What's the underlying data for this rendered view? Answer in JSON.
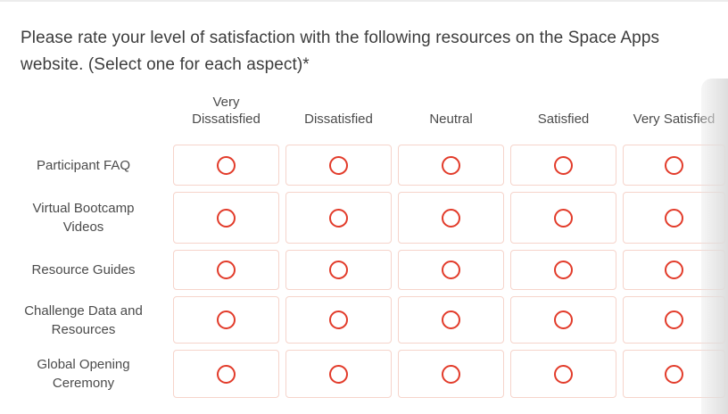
{
  "question": {
    "title": "Please rate your level of satisfaction with the following resources on the Space Apps website. (Select one for each aspect)*"
  },
  "matrix": {
    "columns": [
      "Very Dissatisfied",
      "Dissatisfied",
      "Neutral",
      "Satisfied",
      "Very Satisfied"
    ],
    "rows": [
      {
        "label": "Participant FAQ",
        "selected": null
      },
      {
        "label": "Virtual Bootcamp Videos",
        "selected": null
      },
      {
        "label": "Resource Guides",
        "selected": null
      },
      {
        "label": "Challenge Data and Resources",
        "selected": null
      },
      {
        "label": "Global Opening Ceremony",
        "selected": null
      }
    ]
  },
  "colors": {
    "radio": "#e23b2a",
    "cell_border": "#f6d4cb",
    "title_text": "#3c3c3c",
    "label_text": "#4b4b4b",
    "top_divider": "#ececec"
  }
}
